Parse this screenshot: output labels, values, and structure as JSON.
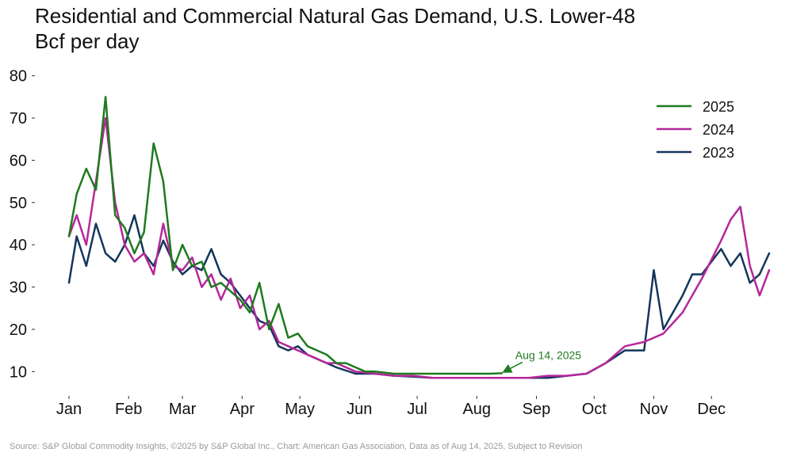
{
  "chart_data": {
    "type": "line",
    "title": "Residential and Commercial Natural Gas Demand, U.S. Lower-48",
    "subtitle": "Bcf per day",
    "ylim": [
      5,
      82
    ],
    "yticks": [
      10,
      20,
      30,
      40,
      50,
      60,
      70,
      80
    ],
    "x_domain_day_of_year": [
      1,
      365
    ],
    "xticks": [
      {
        "label": "Jan",
        "day": 1
      },
      {
        "label": "Feb",
        "day": 32
      },
      {
        "label": "Mar",
        "day": 60
      },
      {
        "label": "Apr",
        "day": 91
      },
      {
        "label": "May",
        "day": 121
      },
      {
        "label": "Jun",
        "day": 152
      },
      {
        "label": "Jul",
        "day": 182
      },
      {
        "label": "Aug",
        "day": 213
      },
      {
        "label": "Sep",
        "day": 244
      },
      {
        "label": "Oct",
        "day": 274
      },
      {
        "label": "Nov",
        "day": 305
      },
      {
        "label": "Dec",
        "day": 335
      }
    ],
    "grid": false,
    "legend_position": "top-right",
    "series": [
      {
        "name": "2025",
        "color": "#1f7a1f",
        "x_day": [
          1,
          5,
          10,
          15,
          20,
          25,
          30,
          35,
          40,
          45,
          50,
          55,
          60,
          65,
          70,
          75,
          80,
          85,
          90,
          95,
          100,
          105,
          110,
          115,
          120,
          125,
          130,
          135,
          140,
          145,
          150,
          155,
          160,
          170,
          180,
          190,
          200,
          210,
          220,
          226
        ],
        "values": [
          42,
          52,
          58,
          53,
          75,
          47,
          44,
          38,
          43,
          64,
          55,
          34,
          40,
          35,
          36,
          30,
          31,
          29,
          27,
          24,
          31,
          20,
          26,
          18,
          19,
          16,
          15,
          14,
          12,
          12,
          11,
          10,
          10,
          9.5,
          9.5,
          9.5,
          9.5,
          9.5,
          9.5,
          9.6
        ]
      },
      {
        "name": "2024",
        "color": "#b5279a",
        "x_day": [
          1,
          5,
          10,
          15,
          20,
          25,
          30,
          35,
          40,
          45,
          50,
          55,
          60,
          65,
          70,
          75,
          80,
          85,
          90,
          95,
          100,
          105,
          110,
          115,
          120,
          125,
          130,
          135,
          140,
          150,
          160,
          170,
          180,
          190,
          200,
          210,
          220,
          230,
          240,
          250,
          260,
          270,
          280,
          290,
          300,
          310,
          320,
          330,
          340,
          345,
          350,
          355,
          360,
          365
        ],
        "values": [
          42,
          47,
          40,
          55,
          70,
          50,
          40,
          36,
          38,
          33,
          45,
          35,
          34,
          37,
          30,
          33,
          27,
          32,
          25,
          28,
          20,
          22,
          17,
          16,
          15,
          14,
          13,
          12,
          12,
          10,
          9.5,
          9,
          9,
          8.5,
          8.5,
          8.5,
          8.5,
          8.5,
          8.5,
          9,
          9,
          9.5,
          12,
          16,
          17,
          19,
          24,
          32,
          41,
          46,
          49,
          35,
          28,
          34
        ]
      },
      {
        "name": "2023",
        "color": "#14365c",
        "x_day": [
          1,
          5,
          10,
          15,
          20,
          25,
          30,
          35,
          40,
          45,
          50,
          55,
          60,
          65,
          70,
          75,
          80,
          85,
          90,
          95,
          100,
          105,
          110,
          115,
          120,
          125,
          130,
          135,
          140,
          150,
          160,
          170,
          180,
          190,
          200,
          210,
          220,
          230,
          240,
          250,
          260,
          270,
          280,
          290,
          300,
          305,
          310,
          315,
          320,
          325,
          330,
          335,
          340,
          345,
          350,
          355,
          360,
          365
        ],
        "values": [
          31,
          42,
          35,
          45,
          38,
          36,
          40,
          47,
          38,
          35,
          41,
          36,
          33,
          35,
          34,
          39,
          33,
          31,
          28,
          25,
          22,
          21,
          16,
          15,
          16,
          14,
          13,
          12,
          11,
          9.5,
          9.5,
          9,
          8.8,
          8.5,
          8.5,
          8.5,
          8.5,
          8.5,
          8.5,
          8.5,
          9,
          9.5,
          12,
          15,
          15,
          34,
          20,
          24,
          28,
          33,
          33,
          36,
          39,
          35,
          38,
          31,
          33,
          38
        ]
      }
    ],
    "annotation": {
      "text": "Aug 14, 2025",
      "x_day": 226,
      "y": 9.6,
      "color": "#1f7a1f"
    }
  },
  "footer": {
    "source": "Source: S&P Global Commodity Insights, ©2025 by S&P Global Inc., Chart: American Gas Association, Data as of Aug 14, 2025, Subject to Revision"
  }
}
